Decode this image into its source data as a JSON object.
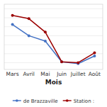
{
  "chart_data": {
    "type": "line",
    "categories": [
      "Mars",
      "Avril",
      "Mai",
      "Juin",
      "Juillet",
      "Août"
    ],
    "series": [
      {
        "name": "de Brazzaville",
        "color": "#4472C4",
        "values": [
          165,
          140,
          128,
          82,
          78,
          95
        ],
        "marker": "circle"
      },
      {
        "name": "Station :",
        "color": "#9B0000",
        "values": [
          185,
          178,
          148,
          82,
          80,
          102
        ],
        "marker": "circle"
      }
    ],
    "xlabel": "Mois",
    "ylim": [
      65,
      210
    ],
    "yticks": [
      80,
      100,
      120,
      140,
      160,
      180,
      200
    ],
    "grid": true,
    "tick_labels": "x",
    "legend": "bottom"
  }
}
